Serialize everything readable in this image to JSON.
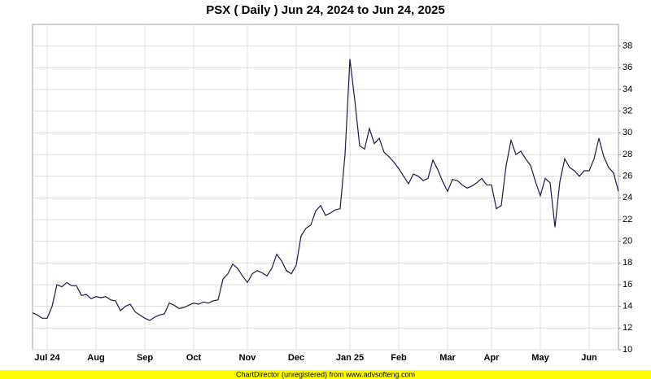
{
  "chart_data": {
    "type": "line",
    "title": "PSX ( Daily ) Jun 24, 2024 to Jun 24, 2025",
    "footer": "ChartDirector (unregistered) from www.advsofteng.com",
    "color": "#1a1a50",
    "grid": true,
    "ylim": [
      10,
      40
    ],
    "yticks": [
      10,
      12,
      14,
      16,
      18,
      20,
      22,
      24,
      26,
      28,
      30,
      32,
      34,
      36,
      38
    ],
    "categories": [
      null,
      null,
      null,
      "Jul 24",
      null,
      null,
      null,
      null,
      null,
      null,
      null,
      null,
      null,
      "Aug",
      null,
      null,
      null,
      null,
      null,
      null,
      null,
      null,
      null,
      "Sep",
      null,
      null,
      null,
      null,
      null,
      null,
      null,
      null,
      null,
      "Oct",
      null,
      null,
      null,
      null,
      null,
      null,
      null,
      null,
      null,
      null,
      "Nov",
      null,
      null,
      null,
      null,
      null,
      null,
      null,
      null,
      null,
      "Dec",
      null,
      null,
      null,
      null,
      null,
      null,
      null,
      null,
      null,
      null,
      "Jan 25",
      null,
      null,
      null,
      null,
      null,
      null,
      null,
      null,
      null,
      "Feb",
      null,
      null,
      null,
      null,
      null,
      null,
      null,
      null,
      null,
      "Mar",
      null,
      null,
      null,
      null,
      null,
      null,
      null,
      null,
      "Apr",
      null,
      null,
      null,
      null,
      null,
      null,
      null,
      null,
      null,
      "May",
      null,
      null,
      null,
      null,
      null,
      null,
      null,
      null,
      null,
      "Jun",
      null,
      null,
      null,
      null,
      null,
      null
    ],
    "values": [
      13.4,
      13.2,
      12.9,
      12.9,
      14.0,
      16.0,
      15.8,
      16.2,
      15.9,
      15.9,
      15.0,
      15.1,
      14.7,
      14.9,
      14.8,
      14.9,
      14.6,
      14.5,
      13.6,
      14.0,
      14.2,
      13.5,
      13.2,
      12.9,
      12.7,
      13.0,
      13.2,
      13.3,
      14.3,
      14.1,
      13.8,
      13.9,
      14.1,
      14.3,
      14.2,
      14.4,
      14.3,
      14.5,
      14.6,
      16.5,
      17.0,
      17.9,
      17.5,
      16.8,
      16.2,
      17.0,
      17.3,
      17.1,
      16.8,
      17.5,
      18.8,
      18.2,
      17.3,
      17.0,
      17.8,
      20.5,
      21.2,
      21.5,
      22.8,
      23.3,
      22.4,
      22.6,
      22.9,
      23.0,
      28.0,
      36.8,
      33.0,
      28.8,
      28.5,
      30.4,
      29.0,
      29.5,
      28.2,
      27.8,
      27.3,
      26.7,
      26.0,
      25.3,
      26.2,
      26.0,
      25.6,
      25.8,
      27.5,
      26.6,
      25.5,
      24.6,
      25.7,
      25.6,
      25.2,
      24.9,
      25.1,
      25.4,
      25.8,
      25.2,
      25.2,
      23.0,
      23.3,
      27.0,
      29.3,
      28.0,
      28.3,
      27.6,
      27.0,
      25.5,
      24.2,
      25.8,
      25.4,
      21.3,
      25.5,
      27.6,
      26.8,
      26.5,
      26.0,
      26.5,
      26.5,
      27.6,
      29.5,
      27.8,
      26.8,
      26.3,
      24.6
    ]
  }
}
